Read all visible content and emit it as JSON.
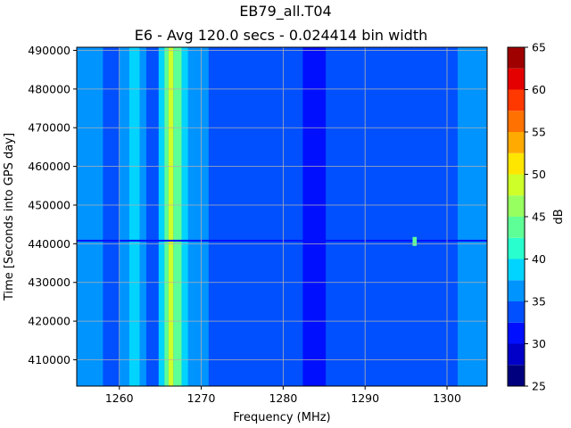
{
  "chart_data": {
    "type": "heatmap",
    "title": "EB79_all.T04",
    "subtitle": "E6 - Avg 120.0 secs - 0.024414 bin width",
    "xlabel": "Frequency (MHz)",
    "ylabel": "Time [Seconds into GPS day]",
    "xlim": [
      1254.8,
      1304.9
    ],
    "ylim": [
      403200,
      490800
    ],
    "x_ticks": [
      1260,
      1270,
      1280,
      1290,
      1300
    ],
    "y_ticks": [
      410000,
      420000,
      430000,
      440000,
      450000,
      460000,
      470000,
      480000,
      490000
    ],
    "grid": true,
    "colorbar": {
      "label": "dB",
      "min": 25,
      "max": 65,
      "ticks": [
        25,
        30,
        35,
        40,
        45,
        50,
        55,
        60,
        65
      ],
      "levels": [
        {
          "from": 25.0,
          "to": 27.5,
          "color": "#00007f"
        },
        {
          "from": 27.5,
          "to": 30.0,
          "color": "#0000c8"
        },
        {
          "from": 30.0,
          "to": 32.5,
          "color": "#0010ff"
        },
        {
          "from": 32.5,
          "to": 35.0,
          "color": "#0050ff"
        },
        {
          "from": 35.0,
          "to": 37.5,
          "color": "#0094ff"
        },
        {
          "from": 37.5,
          "to": 40.0,
          "color": "#00d4ff"
        },
        {
          "from": 40.0,
          "to": 42.5,
          "color": "#29ffce"
        },
        {
          "from": 42.5,
          "to": 45.0,
          "color": "#5fff97"
        },
        {
          "from": 45.0,
          "to": 47.5,
          "color": "#97ff5f"
        },
        {
          "from": 47.5,
          "to": 50.0,
          "color": "#ceff29"
        },
        {
          "from": 50.0,
          "to": 52.5,
          "color": "#ffe600"
        },
        {
          "from": 52.5,
          "to": 55.0,
          "color": "#ffaa00"
        },
        {
          "from": 55.0,
          "to": 57.5,
          "color": "#ff7100"
        },
        {
          "from": 57.5,
          "to": 60.0,
          "color": "#ff3800"
        },
        {
          "from": 60.0,
          "to": 62.5,
          "color": "#e40000"
        },
        {
          "from": 62.5,
          "to": 65.0,
          "color": "#9f0000"
        }
      ]
    },
    "background_level_db": 33.5,
    "bands": [
      {
        "from": 1254.8,
        "to": 1258.0,
        "level_db": 36
      },
      {
        "from": 1260.0,
        "to": 1261.2,
        "level_db": 36
      },
      {
        "from": 1261.2,
        "to": 1262.5,
        "level_db": 38
      },
      {
        "from": 1262.5,
        "to": 1263.3,
        "level_db": 36
      },
      {
        "from": 1264.8,
        "to": 1265.5,
        "level_db": 38
      },
      {
        "from": 1265.5,
        "to": 1266.0,
        "level_db": 43
      },
      {
        "from": 1266.0,
        "to": 1266.6,
        "level_db": 48
      },
      {
        "from": 1266.6,
        "to": 1267.6,
        "level_db": 43
      },
      {
        "from": 1267.6,
        "to": 1268.4,
        "level_db": 38
      },
      {
        "from": 1268.4,
        "to": 1269.4,
        "level_db": 36
      },
      {
        "from": 1269.4,
        "to": 1270.9,
        "level_db": 36
      },
      {
        "from": 1282.4,
        "to": 1285.2,
        "level_db": 30
      },
      {
        "from": 1301.3,
        "to": 1304.9,
        "level_db": 36
      }
    ],
    "events": [
      {
        "time": 440800,
        "from": 1254.8,
        "to": 1304.9,
        "level_db": 30
      },
      {
        "time": 440600,
        "from": 1295.8,
        "to": 1296.3,
        "level_db": 44
      }
    ]
  }
}
